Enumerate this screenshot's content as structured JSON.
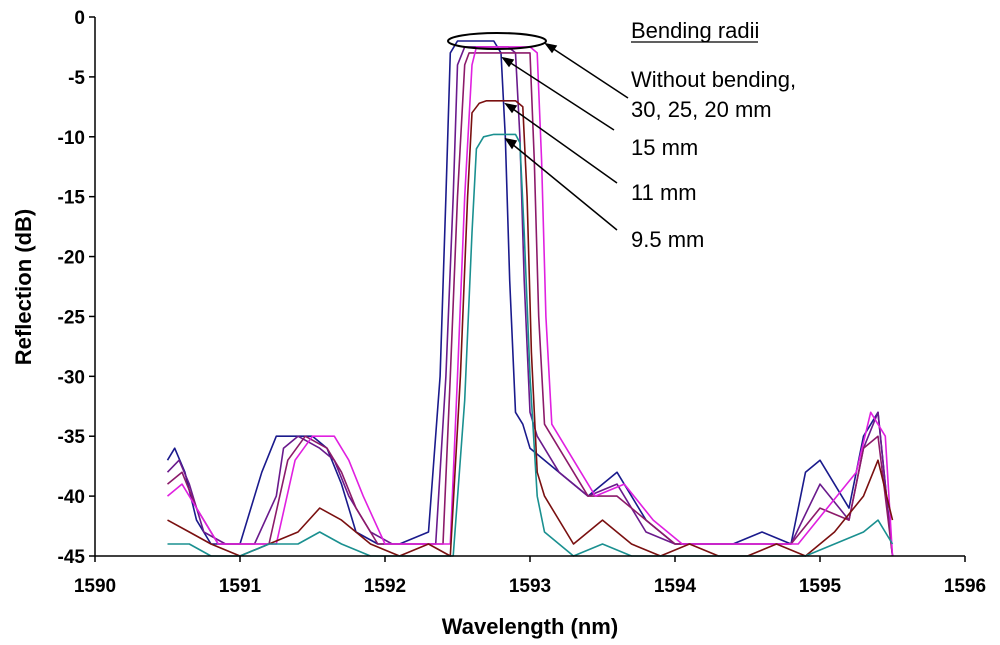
{
  "chart_data": {
    "type": "line",
    "title": "",
    "xlabel": "Wavelength (nm)",
    "ylabel": "Reflection (dB)",
    "xlim": [
      1590,
      1596
    ],
    "ylim": [
      -45,
      0
    ],
    "xticks": [
      "1590",
      "1591",
      "1592",
      "1593",
      "1594",
      "1595",
      "1596"
    ],
    "yticks": [
      "0",
      "-5",
      "-10",
      "-15",
      "-20",
      "-25",
      "-30",
      "-35",
      "-40",
      "-45"
    ],
    "grid": false,
    "legend_title": "Bending radii",
    "series": [
      {
        "color": "#1a1a8c",
        "x": [
          1590.5,
          1590.55,
          1590.62,
          1590.7,
          1590.8,
          1591.0,
          1591.15,
          1591.25,
          1591.35,
          1591.5,
          1591.6,
          1591.7,
          1591.8,
          1591.95,
          1592.1,
          1592.3,
          1592.38,
          1592.42,
          1592.45,
          1592.5,
          1592.6,
          1592.7,
          1592.75,
          1592.8,
          1592.83,
          1592.86,
          1592.9,
          1592.95,
          1593.0,
          1593.2,
          1593.4,
          1593.6,
          1593.8,
          1594.0,
          1594.2,
          1594.4,
          1594.6,
          1594.8,
          1594.9,
          1595.0,
          1595.2,
          1595.3,
          1595.4,
          1595.5
        ],
        "y": [
          -37,
          -36,
          -38,
          -42,
          -44,
          -44,
          -38,
          -35,
          -35,
          -35,
          -36,
          -39,
          -43,
          -44,
          -44,
          -43,
          -30,
          -15,
          -3,
          -2,
          -2,
          -2,
          -2,
          -3,
          -10,
          -22,
          -33,
          -34,
          -36,
          -38,
          -40,
          -38,
          -42,
          -44,
          -44,
          -44,
          -43,
          -44,
          -38,
          -37,
          -41,
          -35,
          -33,
          -45
        ]
      },
      {
        "color": "#6a1a8c",
        "x": [
          1590.5,
          1590.58,
          1590.65,
          1590.75,
          1590.9,
          1591.1,
          1591.25,
          1591.3,
          1591.4,
          1591.55,
          1591.65,
          1591.75,
          1591.9,
          1592.05,
          1592.2,
          1592.35,
          1592.42,
          1592.47,
          1592.5,
          1592.55,
          1592.65,
          1592.75,
          1592.85,
          1592.9,
          1592.93,
          1592.96,
          1593.0,
          1593.05,
          1593.2,
          1593.4,
          1593.6,
          1593.8,
          1594.0,
          1594.2,
          1594.4,
          1594.6,
          1594.8,
          1595.0,
          1595.2,
          1595.3,
          1595.4,
          1595.5
        ],
        "y": [
          -38,
          -37,
          -39,
          -43,
          -44,
          -44,
          -40,
          -36,
          -35,
          -36,
          -37,
          -40,
          -43,
          -44,
          -44,
          -44,
          -30,
          -15,
          -4,
          -2.5,
          -2.5,
          -2.5,
          -2.5,
          -3,
          -10,
          -22,
          -33,
          -35,
          -38,
          -40,
          -39,
          -43,
          -44,
          -44,
          -44,
          -44,
          -44,
          -39,
          -42,
          -36,
          -33,
          -45
        ]
      },
      {
        "color": "#8c1a6a",
        "x": [
          1590.5,
          1590.6,
          1590.7,
          1590.85,
          1591.05,
          1591.2,
          1591.33,
          1591.45,
          1591.6,
          1591.7,
          1591.8,
          1591.95,
          1592.1,
          1592.3,
          1592.4,
          1592.45,
          1592.5,
          1592.55,
          1592.58,
          1592.65,
          1592.75,
          1592.85,
          1592.95,
          1593.0,
          1593.03,
          1593.06,
          1593.1,
          1593.2,
          1593.4,
          1593.6,
          1593.8,
          1594.0,
          1594.2,
          1594.4,
          1594.6,
          1594.8,
          1595.0,
          1595.2,
          1595.3,
          1595.4,
          1595.5
        ],
        "y": [
          -39,
          -38,
          -41,
          -44,
          -44,
          -44,
          -37,
          -35,
          -36,
          -38,
          -41,
          -44,
          -44,
          -44,
          -44,
          -30,
          -15,
          -4,
          -3,
          -3,
          -3,
          -3,
          -3,
          -3,
          -12,
          -25,
          -34,
          -36,
          -40,
          -40,
          -42,
          -44,
          -44,
          -44,
          -44,
          -44,
          -41,
          -42,
          -36,
          -35,
          -45
        ]
      },
      {
        "color": "#e020e0",
        "x": [
          1590.5,
          1590.6,
          1590.7,
          1590.85,
          1591.05,
          1591.25,
          1591.38,
          1591.5,
          1591.65,
          1591.75,
          1591.85,
          1592.0,
          1592.15,
          1592.35,
          1592.45,
          1592.5,
          1592.55,
          1592.6,
          1592.63,
          1592.7,
          1592.8,
          1592.9,
          1593.0,
          1593.05,
          1593.08,
          1593.11,
          1593.15,
          1593.25,
          1593.45,
          1593.65,
          1593.85,
          1594.05,
          1594.25,
          1594.45,
          1594.65,
          1594.85,
          1595.05,
          1595.25,
          1595.35,
          1595.45,
          1595.5
        ],
        "y": [
          -40,
          -39,
          -41,
          -44,
          -44,
          -44,
          -37,
          -35,
          -35,
          -37,
          -40,
          -44,
          -44,
          -44,
          -44,
          -30,
          -15,
          -4,
          -2.5,
          -2.5,
          -2.5,
          -2.5,
          -2.5,
          -3,
          -12,
          -25,
          -34,
          -36,
          -40,
          -39,
          -42,
          -44,
          -44,
          -44,
          -44,
          -44,
          -41,
          -38,
          -33,
          -35,
          -45
        ]
      },
      {
        "color": "#7a1010",
        "x": [
          1590.5,
          1590.65,
          1590.8,
          1591.0,
          1591.2,
          1591.4,
          1591.55,
          1591.7,
          1591.9,
          1592.1,
          1592.3,
          1592.45,
          1592.52,
          1592.57,
          1592.6,
          1592.65,
          1592.7,
          1592.8,
          1592.9,
          1592.95,
          1592.98,
          1593.01,
          1593.05,
          1593.1,
          1593.3,
          1593.5,
          1593.7,
          1593.9,
          1594.1,
          1594.3,
          1594.5,
          1594.7,
          1594.9,
          1595.1,
          1595.3,
          1595.4,
          1595.5
        ],
        "y": [
          -42,
          -43,
          -44,
          -45,
          -44,
          -43,
          -41,
          -42,
          -44,
          -45,
          -44,
          -45,
          -30,
          -15,
          -8,
          -7.2,
          -7,
          -7,
          -7,
          -7.5,
          -15,
          -28,
          -38,
          -40,
          -44,
          -42,
          -44,
          -45,
          -44,
          -45,
          -45,
          -44,
          -45,
          -43,
          -40,
          -37,
          -42
        ]
      },
      {
        "color": "#1a9090",
        "x": [
          1590.5,
          1590.65,
          1590.8,
          1591.0,
          1591.2,
          1591.4,
          1591.55,
          1591.7,
          1591.9,
          1592.1,
          1592.3,
          1592.47,
          1592.55,
          1592.6,
          1592.63,
          1592.68,
          1592.75,
          1592.85,
          1592.9,
          1592.93,
          1592.96,
          1593.0,
          1593.05,
          1593.1,
          1593.3,
          1593.5,
          1593.7,
          1593.9,
          1594.1,
          1594.3,
          1594.5,
          1594.7,
          1594.9,
          1595.1,
          1595.3,
          1595.4,
          1595.5
        ],
        "y": [
          -44,
          -44,
          -45,
          -45,
          -44,
          -44,
          -43,
          -44,
          -45,
          -45,
          -45,
          -45,
          -32,
          -18,
          -11,
          -10,
          -9.8,
          -9.8,
          -9.8,
          -10.5,
          -18,
          -30,
          -40,
          -43,
          -45,
          -44,
          -45,
          -45,
          -45,
          -45,
          -45,
          -45,
          -45,
          -44,
          -43,
          -42,
          -44
        ]
      }
    ],
    "annotations": [
      "Without bending,",
      "30, 25, 20 mm",
      "15 mm",
      "11 mm",
      "9.5 mm"
    ]
  }
}
